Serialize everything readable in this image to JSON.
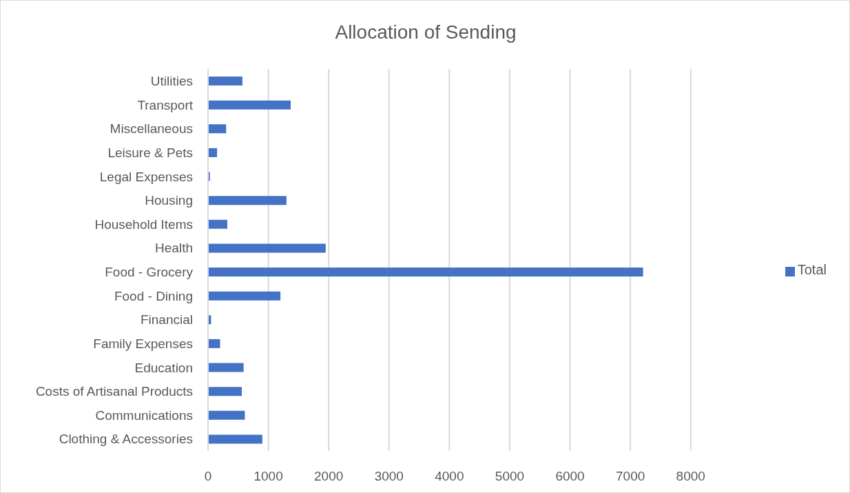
{
  "chart_data": {
    "type": "bar",
    "title": "Allocation of Sending",
    "orientation": "horizontal",
    "categories": [
      "Utilities",
      "Transport",
      "Miscellaneous",
      "Leisure & Pets",
      "Legal Expenses",
      "Housing",
      "Household Items",
      "Health",
      "Food - Grocery",
      "Food - Dining",
      "Financial",
      "Family Expenses",
      "Education",
      "Costs of Artisanal Products",
      "Communications",
      "Clothing & Accessories"
    ],
    "series": [
      {
        "name": "Total",
        "color": "#4472c4",
        "values": [
          570,
          1370,
          300,
          150,
          30,
          1300,
          320,
          1950,
          7210,
          1200,
          50,
          200,
          590,
          560,
          610,
          900
        ]
      }
    ],
    "xlim": [
      0,
      8000
    ],
    "xticks": [
      0,
      1000,
      2000,
      3000,
      4000,
      5000,
      6000,
      7000,
      8000
    ],
    "grid": "x",
    "legend": "right"
  }
}
